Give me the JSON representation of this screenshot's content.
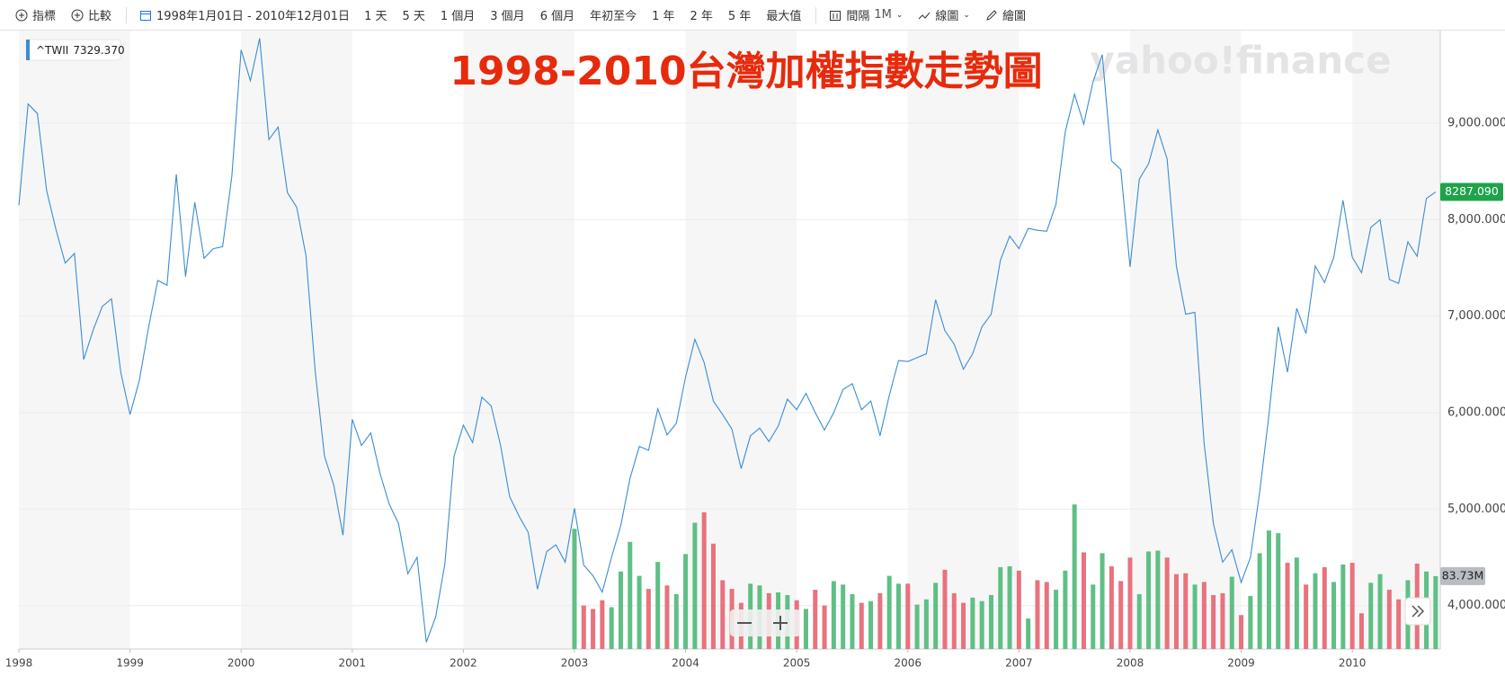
{
  "toolbar": {
    "indicators": "指標",
    "compare": "比較",
    "date_range": "1998年1月01日 - 2010年12月01日",
    "ranges": [
      "1 天",
      "5 天",
      "1 個月",
      "3 個月",
      "6 個月",
      "年初至今",
      "1 年",
      "2 年",
      "5 年",
      "最大值"
    ],
    "interval_label": "間隔",
    "interval": "1M",
    "chart_type": "線圖",
    "draw": "繪圖"
  },
  "chart_data": {
    "type": "line",
    "title": "1998-2010台灣加權指數走勢圖",
    "watermark": "yahoo!finance",
    "legend_value": "7329.370",
    "series": [
      {
        "name": "^TWII",
        "color": "#3a8dd4",
        "values": [
          8150,
          9200,
          9100,
          8300,
          7900,
          7550,
          7650,
          6550,
          6850,
          7100,
          7180,
          6420,
          5980,
          6330,
          6880,
          7370,
          7320,
          8470,
          7410,
          8180,
          7600,
          7700,
          7720,
          8450,
          9760,
          9440,
          9880,
          8830,
          8960,
          8280,
          8130,
          7630,
          6430,
          5550,
          5250,
          4730,
          5930,
          5660,
          5790,
          5370,
          5050,
          4850,
          4330,
          4500,
          3620,
          3880,
          4430,
          5550,
          5870,
          5690,
          6160,
          6070,
          5670,
          5130,
          4930,
          4760,
          4170,
          4560,
          4630,
          4450,
          5010,
          4420,
          4310,
          4140,
          4500,
          4830,
          5320,
          5650,
          5610,
          6040,
          5770,
          5890,
          6370,
          6760,
          6520,
          6120,
          5980,
          5830,
          5420,
          5760,
          5840,
          5700,
          5860,
          6140,
          6030,
          6200,
          6000,
          5820,
          6000,
          6240,
          6300,
          6030,
          6120,
          5760,
          6180,
          6540,
          6530,
          6570,
          6610,
          7170,
          6850,
          6710,
          6450,
          6610,
          6890,
          7020,
          7580,
          7830,
          7700,
          7910,
          7890,
          7880,
          8160,
          8910,
          9300,
          8990,
          9430,
          9710,
          8610,
          8520,
          7510,
          8420,
          8580,
          8930,
          8630,
          7520,
          7020,
          7040,
          5680,
          4850,
          4450,
          4580,
          4240,
          4500,
          5180,
          5980,
          6890,
          6420,
          7080,
          6820,
          7520,
          7350,
          7610,
          8200,
          7610,
          7450,
          7920,
          8000,
          7380,
          7340,
          7770,
          7620,
          8220,
          8287.09
        ]
      }
    ],
    "volume": {
      "up_color": "#5fbf85",
      "down_color": "#e8727d",
      "lim": [
        0,
        710000000
      ],
      "values": [
        null,
        null,
        null,
        null,
        null,
        null,
        null,
        null,
        null,
        null,
        null,
        null,
        null,
        null,
        null,
        null,
        null,
        null,
        null,
        null,
        null,
        null,
        null,
        null,
        null,
        null,
        null,
        null,
        null,
        null,
        null,
        null,
        null,
        null,
        null,
        null,
        null,
        null,
        null,
        null,
        null,
        null,
        null,
        null,
        null,
        null,
        null,
        null,
        null,
        null,
        null,
        null,
        null,
        null,
        null,
        null,
        null,
        null,
        null,
        null,
        138000000,
        50000000,
        46000000,
        56000000,
        48000000,
        89000000,
        123000000,
        84000000,
        69000000,
        100000000,
        73000000,
        63000000,
        109000000,
        145000000,
        157000000,
        121000000,
        79000000,
        69000000,
        53000000,
        75000000,
        73000000,
        64000000,
        65000000,
        62000000,
        56000000,
        46000000,
        68000000,
        50000000,
        78000000,
        74000000,
        63000000,
        53000000,
        55000000,
        64000000,
        84000000,
        75000000,
        75000000,
        51000000,
        57000000,
        76000000,
        91000000,
        64000000,
        53000000,
        59000000,
        55000000,
        62000000,
        94000000,
        95000000,
        90000000,
        35000000,
        79000000,
        77000000,
        68000000,
        90000000,
        166000000,
        111000000,
        74000000,
        110000000,
        95000000,
        78000000,
        105000000,
        63000000,
        112000000,
        113000000,
        105000000,
        86000000,
        87000000,
        74000000,
        77000000,
        62000000,
        64000000,
        83000000,
        39000000,
        61000000,
        110000000,
        136000000,
        133000000,
        99000000,
        105000000,
        74000000,
        87000000,
        94000000,
        77000000,
        97000000,
        99000000,
        41000000,
        76000000,
        86000000,
        68000000,
        57000000,
        79000000,
        98000000,
        89000000,
        83730000
      ]
    },
    "price_badge": {
      "value": 8287.09,
      "label": "8287.090",
      "color": "#1fa34a"
    },
    "volume_badge": {
      "value": 83730000,
      "label": "83.73M",
      "color": "#b9bcc2"
    },
    "xlim": [
      0,
      153.5
    ],
    "xticks": [
      {
        "value": 0,
        "label": "1998"
      },
      {
        "value": 12,
        "label": "1999"
      },
      {
        "value": 24,
        "label": "2000"
      },
      {
        "value": 36,
        "label": "2001"
      },
      {
        "value": 48,
        "label": "2002"
      },
      {
        "value": 60,
        "label": "2003"
      },
      {
        "value": 72,
        "label": "2004"
      },
      {
        "value": 84,
        "label": "2005"
      },
      {
        "value": 96,
        "label": "2006"
      },
      {
        "value": 108,
        "label": "2007"
      },
      {
        "value": 120,
        "label": "2008"
      },
      {
        "value": 132,
        "label": "2009"
      },
      {
        "value": 144,
        "label": "2010"
      }
    ],
    "ylim": [
      3550,
      9960
    ],
    "yticks": [
      {
        "value": 4000,
        "label": "4,000.000"
      },
      {
        "value": 5000,
        "label": "5,000.000"
      },
      {
        "value": 6000,
        "label": "6,000.000"
      },
      {
        "value": 7000,
        "label": "7,000.000"
      },
      {
        "value": 8000,
        "label": "8,000.000"
      },
      {
        "value": 9000,
        "label": "9,000.000"
      }
    ],
    "grid": true
  }
}
